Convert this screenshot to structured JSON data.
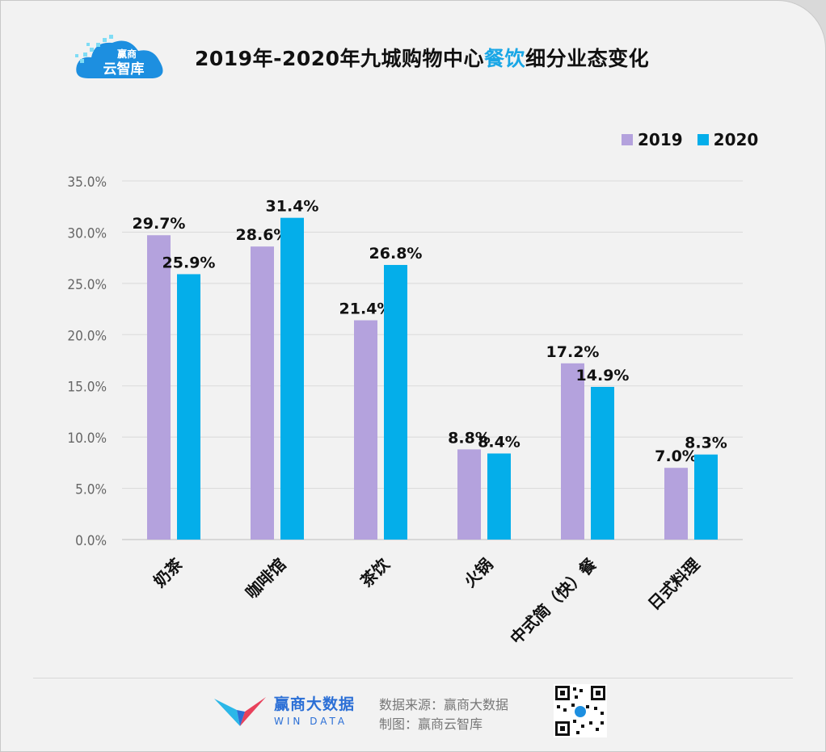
{
  "header": {
    "logo_line1": "赢商",
    "logo_line2": "云智库",
    "title_prefix": "2019年-2020年九城购物中心",
    "title_highlight": "餐饮",
    "title_suffix": "细分业态变化"
  },
  "colors": {
    "series_2019": "#b4a2dd",
    "series_2020": "#04aeea",
    "highlight": "#1aa7e6"
  },
  "chart_data": {
    "type": "bar",
    "title": "2019年-2020年九城购物中心餐饮细分业态变化",
    "categories": [
      "奶茶",
      "咖啡馆",
      "茶饮",
      "火锅",
      "中式简（快）餐",
      "日式料理"
    ],
    "series": [
      {
        "name": "2019",
        "values": [
          29.7,
          28.6,
          21.4,
          8.8,
          17.2,
          7.0
        ],
        "labels": [
          "29.7%",
          "28.6%",
          "21.4%",
          "8.8%",
          "17.2%",
          "7.0%"
        ]
      },
      {
        "name": "2020",
        "values": [
          25.9,
          31.4,
          26.8,
          8.4,
          14.9,
          8.3
        ],
        "labels": [
          "25.9%",
          "31.4%",
          "26.8%",
          "8.4%",
          "14.9%",
          "8.3%"
        ]
      }
    ],
    "ylim": [
      0,
      35
    ],
    "yticks": [
      0,
      5,
      10,
      15,
      20,
      25,
      30,
      35
    ],
    "ytick_labels": [
      "0.0%",
      "5.0%",
      "10.0%",
      "15.0%",
      "20.0%",
      "25.0%",
      "30.0%",
      "35.0%"
    ],
    "xlabel": "",
    "ylabel": "",
    "grid": true,
    "legend": "top-right"
  },
  "footer": {
    "brand_name": "赢商大数据",
    "brand_sub": "WIN DATA",
    "source_line1": "数据来源：赢商大数据",
    "source_line2": "制图：赢商云智库"
  }
}
